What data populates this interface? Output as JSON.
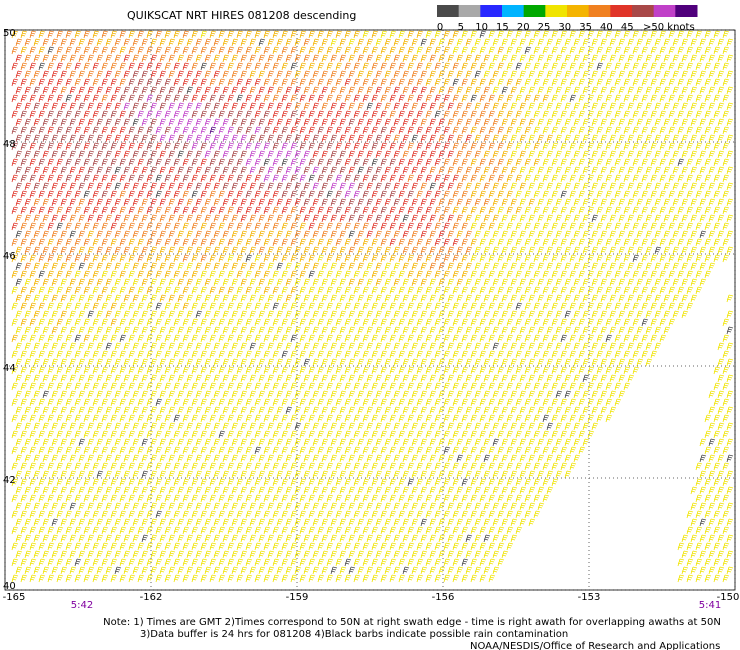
{
  "header": {
    "title": "QUIKSCAT NRT HIRES 081208 descending"
  },
  "colorbar": {
    "colors": [
      "#4a4a4a",
      "#a8a8a8",
      "#2828ff",
      "#00b4ff",
      "#00a800",
      "#f0e400",
      "#f4b400",
      "#f08020",
      "#e03428",
      "#a84848",
      "#c040c8",
      "#50007c"
    ],
    "range": [
      0,
      60
    ],
    "ticks": [
      0,
      5,
      10,
      15,
      20,
      25,
      30,
      35,
      40,
      45,
      {
        "value": 50,
        "label": ">50 knots"
      }
    ]
  },
  "map": {
    "lon_range": [
      -165,
      -150
    ],
    "lat_range": [
      40,
      50
    ],
    "lon_ticks": [
      -165,
      -162,
      -159,
      -156,
      -153,
      -150
    ],
    "lat_ticks": [
      40,
      42,
      44,
      46,
      48,
      50
    ],
    "time_labels": [
      "5:42",
      "5:41"
    ],
    "time_color": "#8000a0"
  },
  "notes": [
    "Note: 1) Times are GMT 2)Times correspond to 50N at right swath edge - time is right awath for overlapping awaths at 50N",
    "3)Data buffer is 24 hrs for 081208 4)Black barbs indicate possible rain contamination",
    "NOAA/NESDIS/Office of Research and Applications"
  ]
}
